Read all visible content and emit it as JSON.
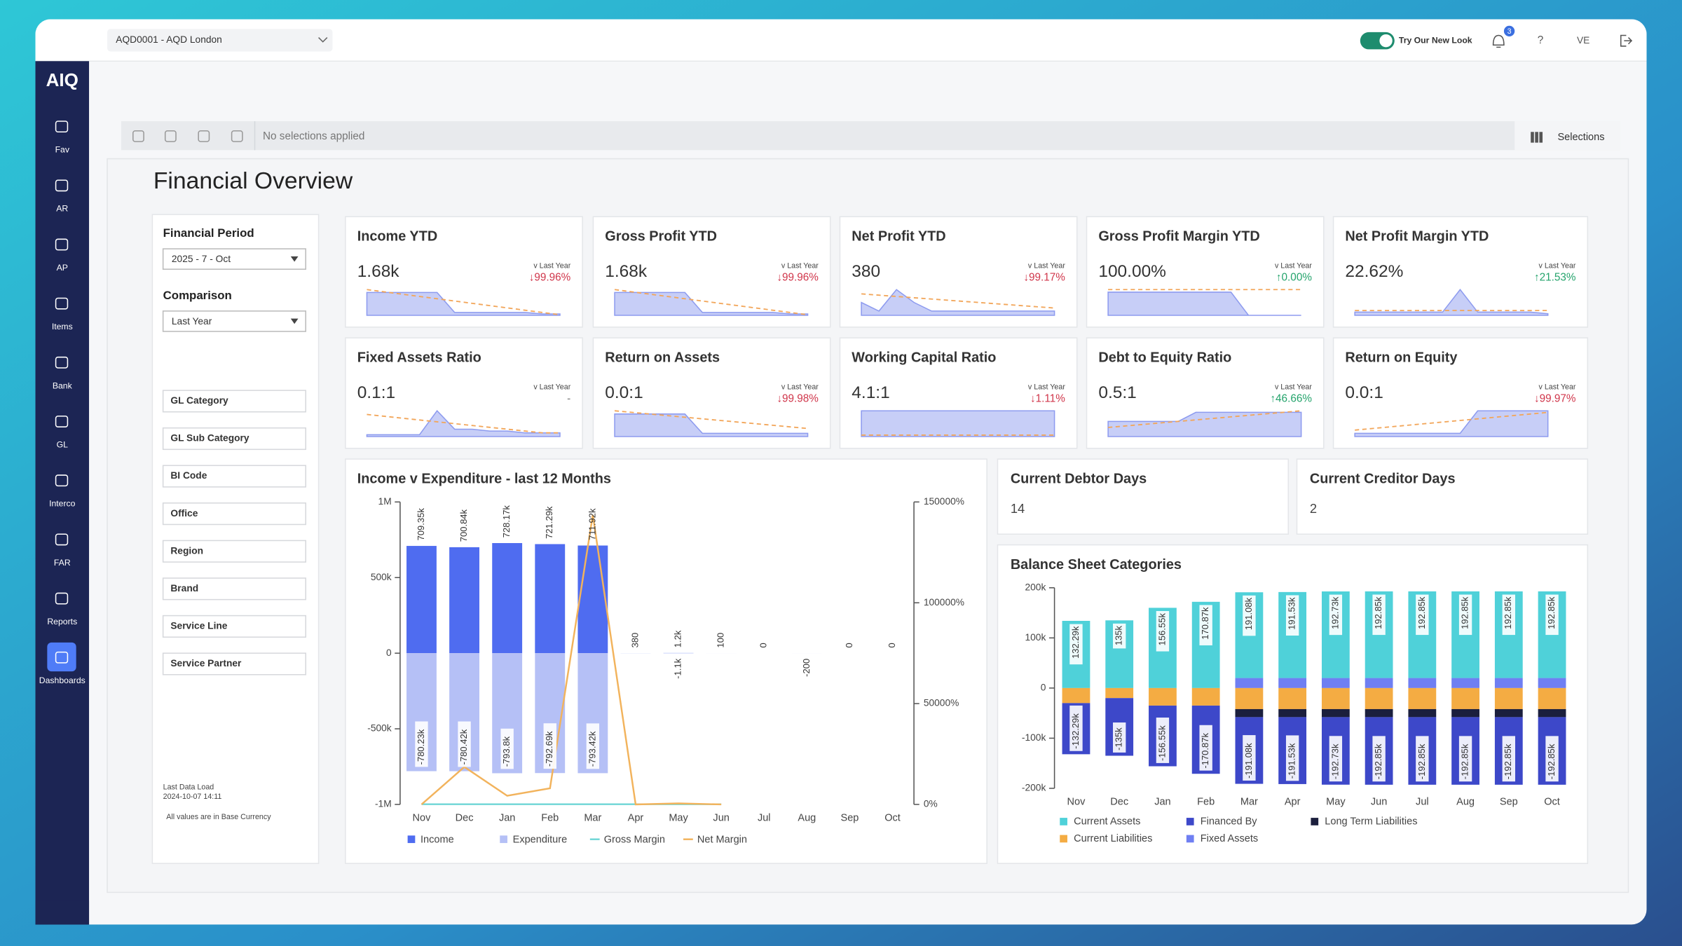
{
  "top_bar": {
    "entity": "AQD0001 - AQD London",
    "toggle_label": "Try Our New Look",
    "notification_count": 3,
    "help": "?",
    "user": "VE"
  },
  "sidebar": {
    "logo": "AIQ",
    "items": [
      "Fav",
      "AR",
      "AP",
      "Items",
      "Bank",
      "GL",
      "Interco",
      "FAR",
      "Reports",
      "Dashboards"
    ]
  },
  "selection_bar": {
    "status": "No selections applied",
    "button": "Selections"
  },
  "page_title": "Financial Overview",
  "filters": {
    "period_label": "Financial Period",
    "period_value": "2025 - 7 - Oct",
    "comparison_label": "Comparison",
    "comparison_value": "Last Year",
    "fields": [
      "GL Category",
      "GL Sub Category",
      "BI Code",
      "Office",
      "Region",
      "Brand",
      "Service Line",
      "Service Partner"
    ],
    "last_load_label": "Last Data Load",
    "last_load": "2024-10-07 14:11",
    "currency_note": "All values are in Base Currency"
  },
  "kpis": [
    {
      "title": "Income YTD",
      "value": "1.68k",
      "vs": "v Last Year",
      "change": "↓99.96%",
      "trend": "down",
      "spark": [
        8,
        8,
        8,
        8,
        8,
        1,
        1,
        1,
        1,
        1,
        0.5,
        0.5
      ],
      "spark_ly": [
        9,
        8.2,
        7.4,
        6.6,
        5.8,
        5,
        4.2,
        3.4,
        2.6,
        1.8,
        1,
        0.2
      ]
    },
    {
      "title": "Gross Profit YTD",
      "value": "1.68k",
      "vs": "v Last Year",
      "change": "↓99.96%",
      "trend": "down",
      "spark": [
        8,
        8,
        8,
        8,
        8,
        1,
        1,
        1,
        1,
        1,
        0.5,
        0.5
      ],
      "spark_ly": [
        9,
        8.2,
        7.4,
        6.6,
        5.8,
        5,
        4.2,
        3.4,
        2.6,
        1.8,
        1,
        0.2
      ]
    },
    {
      "title": "Net Profit YTD",
      "value": "380",
      "vs": "v Last Year",
      "change": "↓99.17%",
      "trend": "down",
      "spark": [
        3,
        1,
        6,
        3,
        1,
        1,
        1,
        1,
        1,
        1,
        1,
        1
      ],
      "spark_ly": [
        5,
        4.7,
        4.4,
        4.1,
        3.8,
        3.5,
        3.2,
        2.9,
        2.6,
        2.3,
        2,
        1.7
      ]
    },
    {
      "title": "Gross Profit Margin YTD",
      "value": "100.00%",
      "vs": "v Last Year",
      "change": "↑0.00%",
      "trend": "up",
      "spark": [
        9,
        9,
        9,
        9,
        9,
        9,
        9,
        9,
        0,
        0,
        0,
        0
      ],
      "spark_ly": [
        10,
        10,
        10,
        10,
        10,
        10,
        10,
        10,
        10,
        10,
        10,
        10
      ]
    },
    {
      "title": "Net Profit Margin YTD",
      "value": "22.62%",
      "vs": "v Last Year",
      "change": "↑21.53%",
      "trend": "up",
      "spark": [
        1,
        1,
        1,
        1,
        1,
        1,
        8,
        1,
        1,
        1,
        1,
        0.5
      ],
      "spark_ly": [
        1.5,
        1.5,
        1.5,
        1.5,
        1.5,
        1.5,
        1.5,
        1.5,
        1.5,
        1.5,
        1.5,
        1.5
      ]
    },
    {
      "title": "Fixed Assets Ratio",
      "value": "0.1:1",
      "vs": "v Last Year",
      "change": "-",
      "trend": "none",
      "spark": [
        0.5,
        0.5,
        0.5,
        0.5,
        7,
        2,
        2,
        1.5,
        1.5,
        1,
        1,
        1
      ],
      "spark_ly": [
        6,
        5.5,
        5,
        4.5,
        4,
        3.5,
        3,
        2.5,
        2,
        1.5,
        1,
        1
      ]
    },
    {
      "title": "Return on Assets",
      "value": "0.0:1",
      "vs": "v Last Year",
      "change": "↓99.98%",
      "trend": "down",
      "spark": [
        7,
        7,
        7,
        7,
        7,
        1,
        1,
        1,
        1,
        1,
        1,
        1
      ],
      "spark_ly": [
        8,
        7.5,
        7,
        6.5,
        6,
        5.5,
        5,
        4.5,
        4,
        3.5,
        3,
        2.5
      ]
    },
    {
      "title": "Working Capital Ratio",
      "value": "4.1:1",
      "vs": "v Last Year",
      "change": "↓1.11%",
      "trend": "down",
      "spark": [
        9,
        9,
        9,
        9,
        9,
        9,
        9,
        9,
        9,
        9,
        9,
        9
      ],
      "spark_ly": [
        0.5,
        0.5,
        0.5,
        0.5,
        0.5,
        0.5,
        0.5,
        0.5,
        0.5,
        0.5,
        0.5,
        0.5
      ]
    },
    {
      "title": "Debt to Equity Ratio",
      "value": "0.5:1",
      "vs": "v Last Year",
      "change": "↑46.66%",
      "trend": "up",
      "spark": [
        5,
        5,
        5,
        5,
        5,
        8,
        8,
        8,
        8,
        8,
        8,
        8
      ],
      "spark_ly": [
        3,
        3.5,
        4,
        4.5,
        5,
        5.5,
        6,
        6.5,
        7,
        7.5,
        8,
        8.5
      ]
    },
    {
      "title": "Return on Equity",
      "value": "0.0:1",
      "vs": "v Last Year",
      "change": "↓99.97%",
      "trend": "down",
      "spark": [
        1,
        1,
        1,
        1,
        1,
        1,
        1,
        8,
        8,
        8,
        8,
        8
      ],
      "spark_ly": [
        2,
        2.5,
        3,
        3.5,
        4,
        4.5,
        5,
        5.5,
        6,
        6.5,
        7,
        7.5
      ]
    }
  ],
  "day_cards": [
    {
      "title": "Current Debtor Days",
      "value": 14
    },
    {
      "title": "Current Creditor Days",
      "value": 2
    }
  ],
  "chart_data": [
    {
      "type": "bar",
      "title": "Income v Expenditure - last 12 Months",
      "categories": [
        "Nov",
        "Dec",
        "Jan",
        "Feb",
        "Mar",
        "Apr",
        "May",
        "Jun",
        "Jul",
        "Aug",
        "Sep",
        "Oct"
      ],
      "series": [
        {
          "name": "Income",
          "type": "bar",
          "color": "#4f6cf0",
          "values": [
            709350,
            700840,
            728170,
            721290,
            711920,
            380,
            1200,
            100,
            0,
            null,
            0,
            0
          ],
          "value_labels": [
            "709.35k",
            "700.84k",
            "728.17k",
            "721.29k",
            "711.92k",
            "380",
            "1.2k",
            "100",
            "0",
            null,
            "0",
            "0"
          ]
        },
        {
          "name": "Expenditure",
          "type": "bar",
          "color": "#b5c0f6",
          "values": [
            -780230,
            -780420,
            -793800,
            -792690,
            -793420,
            null,
            -1100,
            null,
            null,
            -200,
            null,
            null
          ],
          "value_labels": [
            "-780.23k",
            "-780.42k",
            "-793.8k",
            "-792.69k",
            "-793.42k",
            null,
            "-1.1k",
            null,
            null,
            "-200",
            null,
            null
          ]
        },
        {
          "name": "Gross Margin",
          "type": "line",
          "axis": "y2",
          "color": "#6fd6d6",
          "values": [
            100,
            100,
            100,
            100,
            100,
            100,
            100,
            100,
            null,
            null,
            null,
            null
          ]
        },
        {
          "name": "Net Margin",
          "type": "line",
          "axis": "y2",
          "color": "#f2b35c",
          "values": [
            0,
            18600,
            4300,
            8000,
            143600,
            0,
            500,
            0,
            null,
            0,
            null,
            null
          ]
        }
      ],
      "ylim": [
        -1000000,
        1000000
      ],
      "yticks": [
        {
          "value": -1000000,
          "label": "-1M"
        },
        {
          "value": -500000,
          "label": "-500k"
        },
        0,
        {
          "value": 500000,
          "label": "500k"
        },
        {
          "value": 1000000,
          "label": "1M"
        }
      ],
      "y2lim": [
        0,
        150000
      ],
      "y2ticks": [
        {
          "value": 0,
          "label": "0%"
        },
        {
          "value": 50000,
          "label": "50000%"
        },
        {
          "value": 100000,
          "label": "100000%"
        },
        {
          "value": 150000,
          "label": "150000%"
        }
      ]
    },
    {
      "type": "stacked_bar",
      "title": "Balance Sheet Categories",
      "categories": [
        "Nov",
        "Dec",
        "Jan",
        "Feb",
        "Mar",
        "Apr",
        "May",
        "Jun",
        "Jul",
        "Aug",
        "Sep",
        "Oct"
      ],
      "series": [
        {
          "name": "Current Assets",
          "color": "#4fd1d9",
          "values": [
            134000,
            135000,
            160000,
            172000,
            171000,
            171500,
            172700,
            172800,
            172800,
            172800,
            172800,
            172800
          ]
        },
        {
          "name": "Financed By",
          "color": "#3d48c9",
          "values": [
            -102000,
            -115000,
            -121000,
            -136000,
            -133000,
            -133500,
            -134700,
            -134800,
            -134800,
            -134800,
            -134800,
            -134800
          ]
        },
        {
          "name": "Long Term Liabilities",
          "color": "#1b1f3d",
          "values": [
            0,
            0,
            0,
            0,
            -16000,
            -16000,
            -16000,
            -16000,
            -16000,
            -16000,
            -16000,
            -16000
          ]
        },
        {
          "name": "Current Liabilities",
          "color": "#f4ac43",
          "values": [
            -30000,
            -20000,
            -35000,
            -35000,
            -42000,
            -42000,
            -42000,
            -42000,
            -42000,
            -42000,
            -42000,
            -42000
          ]
        },
        {
          "name": "Fixed Assets",
          "color": "#6f7ff2",
          "values": [
            0,
            0,
            0,
            0,
            20000,
            20000,
            20000,
            20000,
            20000,
            20000,
            20000,
            20000
          ]
        }
      ],
      "positive_totals": {
        "values": [
          132290,
          135000,
          156550,
          170870,
          191080,
          191530,
          192730,
          192850,
          192850,
          192850,
          192850,
          192850
        ],
        "value_labels": [
          "132.29k",
          "135k",
          "156.55k",
          "170.87k",
          "191.08k",
          "191.53k",
          "192.73k",
          "192.85k",
          "192.85k",
          "192.85k",
          "192.85k",
          "192.85k"
        ]
      },
      "negative_totals": {
        "values": [
          -132290,
          -135000,
          -156550,
          -170870,
          -191080,
          -191530,
          -192730,
          -192850,
          -192850,
          -192850,
          -192850,
          -192850
        ],
        "value_labels": [
          "-132.29k",
          "-135k",
          "-156.55k",
          "-170.87k",
          "-191.08k",
          "-191.53k",
          "-192.73k",
          "-192.85k",
          "-192.85k",
          "-192.85k",
          "-192.85k",
          "-192.85k"
        ]
      },
      "ylim": [
        -200000,
        200000
      ],
      "yticks": [
        {
          "value": -200000,
          "label": "-200k"
        },
        {
          "value": -100000,
          "label": "-100k"
        },
        0,
        {
          "value": 100000,
          "label": "100k"
        },
        {
          "value": 200000,
          "label": "200k"
        }
      ]
    }
  ]
}
